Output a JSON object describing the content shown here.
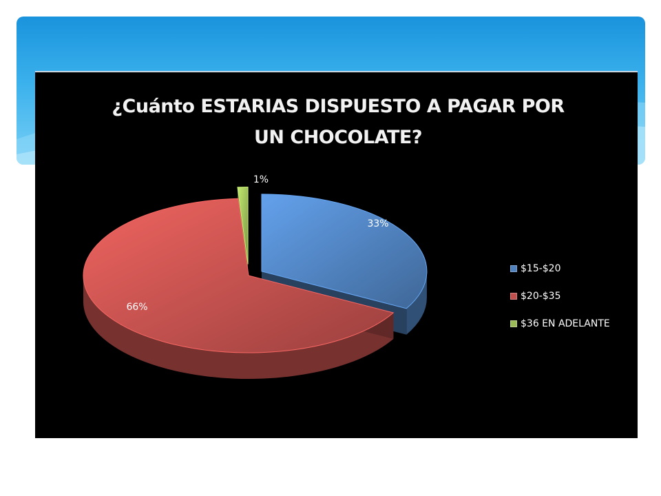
{
  "chart_data": {
    "type": "pie",
    "title": "¿Cuánto ESTARIAS DISPUESTO A PAGAR POR\nUN CHOCOLATE?",
    "categories": [
      "$15-$20",
      "$20-$35",
      "$36 EN ADELANTE"
    ],
    "values": [
      33,
      66,
      1
    ],
    "labels": [
      "33%",
      "66%",
      "1%"
    ],
    "colors": [
      "#4f81bd",
      "#c0504d",
      "#9bbb59"
    ],
    "exploded": true,
    "three_d": true,
    "legend_position": "right"
  }
}
